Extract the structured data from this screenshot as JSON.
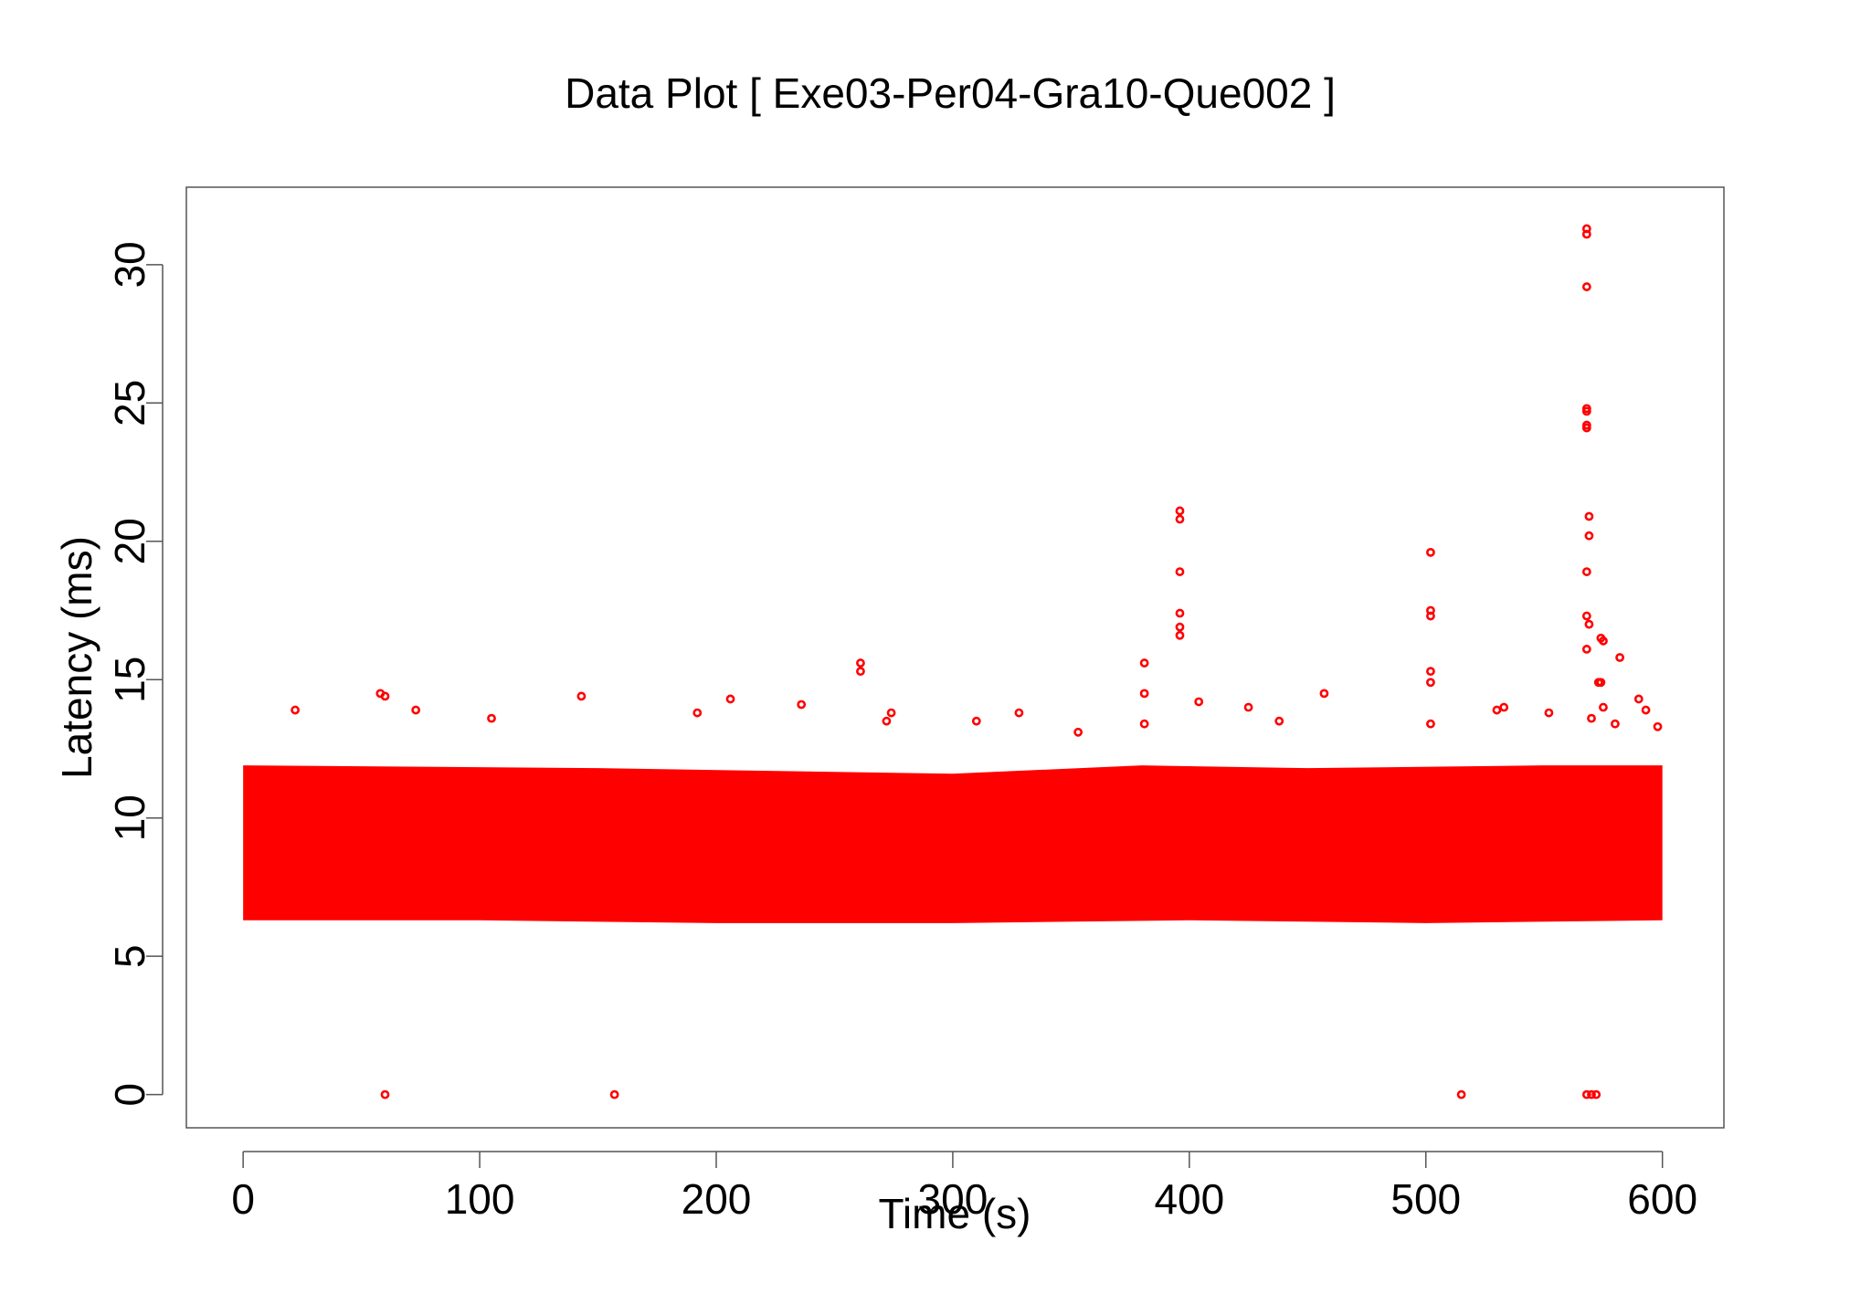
{
  "chart_data": {
    "type": "scatter",
    "title": "Data Plot [ Exe03-Per04-Gra10-Que002 ]",
    "xlabel": "Time (s)",
    "ylabel": "Latency (ms)",
    "xlim": [
      -24,
      626
    ],
    "ylim": [
      -1.2,
      32.8
    ],
    "x_ticks": [
      0,
      100,
      200,
      300,
      400,
      500,
      600
    ],
    "y_ticks": [
      0,
      5,
      10,
      15,
      20,
      25,
      30
    ],
    "x_tick_labels": [
      "0",
      "100",
      "200",
      "300",
      "400",
      "500",
      "600"
    ],
    "y_tick_labels": [
      "0",
      "5",
      "10",
      "15",
      "20",
      "25",
      "30"
    ],
    "grid": false,
    "legend": "none",
    "point_color": "#ff0000",
    "dense_band": {
      "x_range": [
        0,
        600
      ],
      "y_upper": [
        [
          0,
          11.9
        ],
        [
          150,
          11.8
        ],
        [
          300,
          11.6
        ],
        [
          380,
          11.9
        ],
        [
          450,
          11.8
        ],
        [
          550,
          11.9
        ],
        [
          600,
          11.9
        ]
      ],
      "y_lower": [
        [
          0,
          6.3
        ],
        [
          100,
          6.3
        ],
        [
          200,
          6.2
        ],
        [
          300,
          6.2
        ],
        [
          400,
          6.3
        ],
        [
          500,
          6.2
        ],
        [
          600,
          6.3
        ]
      ]
    },
    "outliers": [
      {
        "x": 60,
        "y": 0.0
      },
      {
        "x": 157,
        "y": 0.0
      },
      {
        "x": 515,
        "y": 0.0
      },
      {
        "x": 568,
        "y": 0.0
      },
      {
        "x": 570,
        "y": 0.0
      },
      {
        "x": 572,
        "y": 0.0
      },
      {
        "x": 58,
        "y": 14.5
      },
      {
        "x": 60,
        "y": 14.4
      },
      {
        "x": 22,
        "y": 13.9
      },
      {
        "x": 73,
        "y": 13.9
      },
      {
        "x": 105,
        "y": 13.6
      },
      {
        "x": 143,
        "y": 14.4
      },
      {
        "x": 206,
        "y": 14.3
      },
      {
        "x": 236,
        "y": 14.1
      },
      {
        "x": 261,
        "y": 15.6
      },
      {
        "x": 261,
        "y": 15.3
      },
      {
        "x": 272,
        "y": 13.5
      },
      {
        "x": 274,
        "y": 13.8
      },
      {
        "x": 328,
        "y": 13.8
      },
      {
        "x": 310,
        "y": 13.5
      },
      {
        "x": 353,
        "y": 13.1
      },
      {
        "x": 192,
        "y": 13.8
      },
      {
        "x": 381,
        "y": 15.6
      },
      {
        "x": 381,
        "y": 14.5
      },
      {
        "x": 381,
        "y": 13.4
      },
      {
        "x": 396,
        "y": 21.1
      },
      {
        "x": 396,
        "y": 20.8
      },
      {
        "x": 396,
        "y": 18.9
      },
      {
        "x": 396,
        "y": 17.4
      },
      {
        "x": 396,
        "y": 16.9
      },
      {
        "x": 396,
        "y": 16.6
      },
      {
        "x": 404,
        "y": 14.2
      },
      {
        "x": 425,
        "y": 14.0
      },
      {
        "x": 457,
        "y": 14.5
      },
      {
        "x": 438,
        "y": 13.5
      },
      {
        "x": 502,
        "y": 19.6
      },
      {
        "x": 502,
        "y": 17.5
      },
      {
        "x": 502,
        "y": 17.3
      },
      {
        "x": 502,
        "y": 15.3
      },
      {
        "x": 502,
        "y": 14.9
      },
      {
        "x": 502,
        "y": 13.4
      },
      {
        "x": 530,
        "y": 13.9
      },
      {
        "x": 533,
        "y": 14.0
      },
      {
        "x": 552,
        "y": 13.8
      },
      {
        "x": 568,
        "y": 31.3
      },
      {
        "x": 568,
        "y": 31.1
      },
      {
        "x": 568,
        "y": 29.2
      },
      {
        "x": 568,
        "y": 24.8
      },
      {
        "x": 568,
        "y": 24.7
      },
      {
        "x": 568,
        "y": 24.2
      },
      {
        "x": 568,
        "y": 24.1
      },
      {
        "x": 569,
        "y": 20.9
      },
      {
        "x": 569,
        "y": 20.2
      },
      {
        "x": 568,
        "y": 18.9
      },
      {
        "x": 568,
        "y": 17.3
      },
      {
        "x": 569,
        "y": 17.0
      },
      {
        "x": 568,
        "y": 16.1
      },
      {
        "x": 574,
        "y": 16.5
      },
      {
        "x": 575,
        "y": 16.4
      },
      {
        "x": 573,
        "y": 14.9
      },
      {
        "x": 574,
        "y": 14.9
      },
      {
        "x": 575,
        "y": 14.0
      },
      {
        "x": 582,
        "y": 15.8
      },
      {
        "x": 590,
        "y": 14.3
      },
      {
        "x": 593,
        "y": 13.9
      },
      {
        "x": 598,
        "y": 13.3
      },
      {
        "x": 570,
        "y": 13.6
      },
      {
        "x": 580,
        "y": 13.4
      }
    ]
  }
}
